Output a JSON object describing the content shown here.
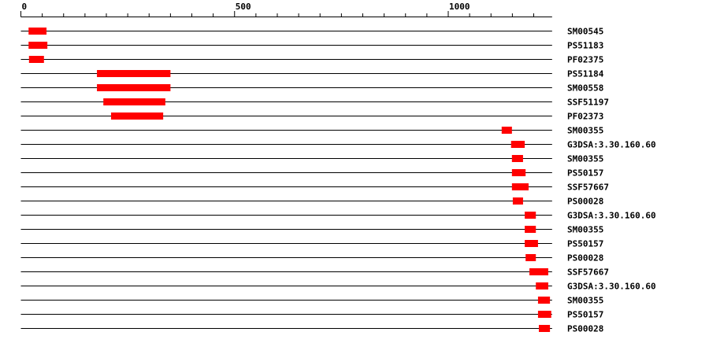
{
  "axis": {
    "min": 0,
    "max": 1243,
    "minor_step": 50,
    "major_ticks": [
      0,
      500,
      1000
    ],
    "tick_labels": [
      "0",
      "500",
      "1000"
    ]
  },
  "colors": {
    "domain": "#ff0000",
    "line": "#000000"
  },
  "rows": [
    {
      "label": "SM00545",
      "start": 18,
      "end": 60
    },
    {
      "label": "PS51183",
      "start": 18,
      "end": 62
    },
    {
      "label": "PF02375",
      "start": 19,
      "end": 54
    },
    {
      "label": "PS51184",
      "start": 178,
      "end": 350
    },
    {
      "label": "SM00558",
      "start": 178,
      "end": 350
    },
    {
      "label": "SSF51197",
      "start": 193,
      "end": 338
    },
    {
      "label": "PF02373",
      "start": 211,
      "end": 333
    },
    {
      "label": "SM00355",
      "start": 1125,
      "end": 1149
    },
    {
      "label": "G3DSA:3.30.160.60",
      "start": 1147,
      "end": 1179
    },
    {
      "label": "SM00355",
      "start": 1149,
      "end": 1175
    },
    {
      "label": "PS50157",
      "start": 1149,
      "end": 1181
    },
    {
      "label": "SSF57667",
      "start": 1149,
      "end": 1188
    },
    {
      "label": "PS00028",
      "start": 1151,
      "end": 1175
    },
    {
      "label": "G3DSA:3.30.160.60",
      "start": 1179,
      "end": 1205
    },
    {
      "label": "SM00355",
      "start": 1179,
      "end": 1205
    },
    {
      "label": "PS50157",
      "start": 1179,
      "end": 1210
    },
    {
      "label": "PS00028",
      "start": 1181,
      "end": 1205
    },
    {
      "label": "SSF57667",
      "start": 1190,
      "end": 1234
    },
    {
      "label": "G3DSA:3.30.160.60",
      "start": 1205,
      "end": 1234
    },
    {
      "label": "SM00355",
      "start": 1210,
      "end": 1238
    },
    {
      "label": "PS50157",
      "start": 1210,
      "end": 1241
    },
    {
      "label": "PS00028",
      "start": 1212,
      "end": 1238
    }
  ]
}
